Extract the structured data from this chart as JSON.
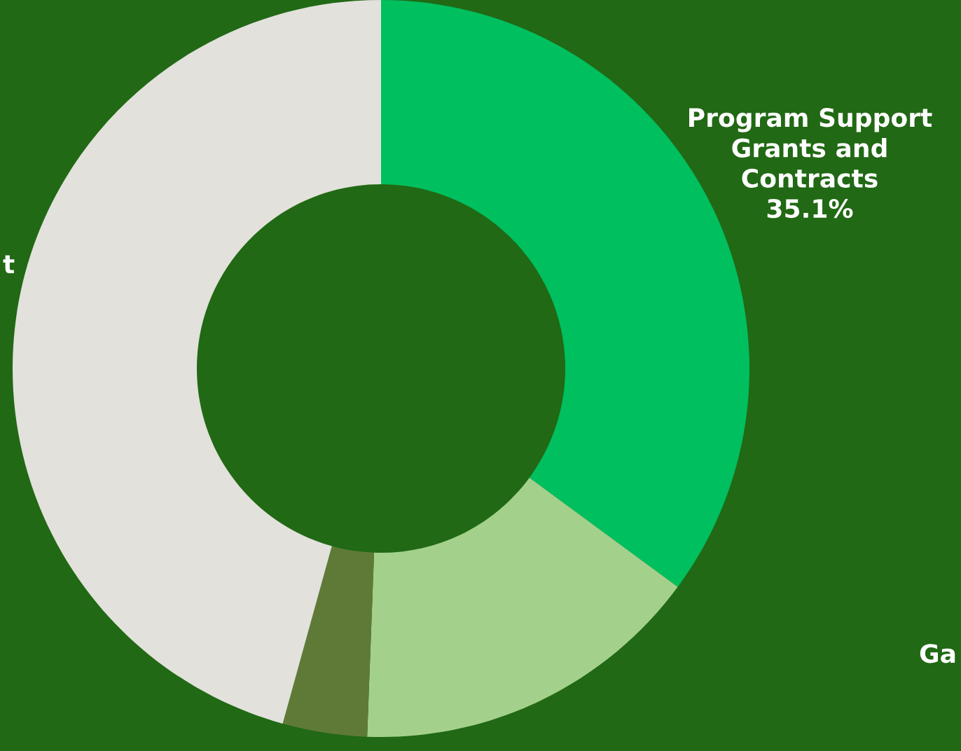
{
  "chart_data": {
    "type": "donut",
    "categories": [
      "Program Support\nGrants and\nContracts",
      null,
      null,
      "t"
    ],
    "annotations": [
      "Ga"
    ],
    "values": [
      35.1,
      15.5,
      3.7,
      45.7
    ],
    "value_labels": [
      "35.1%",
      null,
      null,
      null
    ],
    "colors": [
      "#00bf5f",
      "#a3d18c",
      "#5f7a37",
      "#e2e1dc"
    ],
    "legend": false
  }
}
